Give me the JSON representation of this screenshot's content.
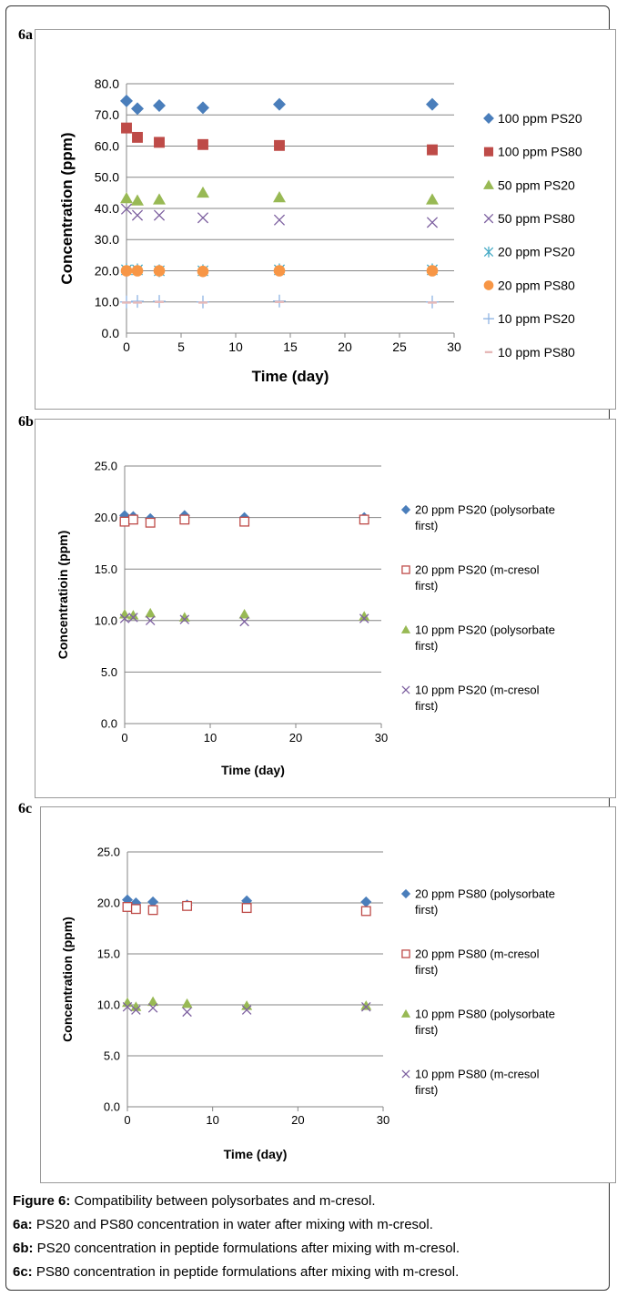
{
  "caption": {
    "title_bold": "Figure 6:",
    "title_text": " Compatibility between polysorbates and m-cresol.",
    "lines": [
      {
        "bold": "6a:",
        "text": " PS20 and PS80 concentration in water after mixing with m-cresol."
      },
      {
        "bold": "6b:",
        "text": " PS20 concentration in peptide formulations after mixing with m-cresol."
      },
      {
        "bold": "6c:",
        "text": " PS80 concentration in peptide formulations after mixing with m-cresol."
      }
    ]
  },
  "chart_data": [
    {
      "id": "6a",
      "type": "scatter",
      "panel_label": "6a",
      "xlabel": "Time (day)",
      "ylabel": "Concentration (ppm)",
      "xlim": [
        0,
        30
      ],
      "ylim": [
        0,
        80
      ],
      "xticks": [
        0,
        5,
        10,
        15,
        20,
        25,
        30
      ],
      "yticks": [
        "0.0",
        "10.0",
        "20.0",
        "30.0",
        "40.0",
        "50.0",
        "60.0",
        "70.0",
        "80.0"
      ],
      "grid": "horizontal",
      "legend_position": "right",
      "x": [
        0,
        1,
        3,
        7,
        14,
        28
      ],
      "series": [
        {
          "name": "100 ppm PS20",
          "marker": "diamond",
          "color": "#4a7ebb",
          "values": [
            74.5,
            72.0,
            73.0,
            72.3,
            73.4,
            73.4
          ]
        },
        {
          "name": "100 ppm PS80",
          "marker": "square",
          "color": "#be4b48",
          "values": [
            65.8,
            62.8,
            61.2,
            60.5,
            60.2,
            58.8
          ]
        },
        {
          "name": "50 ppm PS20",
          "marker": "triangle",
          "color": "#98b954",
          "values": [
            43.2,
            42.5,
            42.8,
            45.0,
            43.5,
            42.8
          ]
        },
        {
          "name": "50 ppm PS80",
          "marker": "x",
          "color": "#7d60a0",
          "values": [
            39.8,
            37.8,
            37.8,
            37.0,
            36.3,
            35.5
          ]
        },
        {
          "name": "20 ppm PS20",
          "marker": "star",
          "color": "#46aac5",
          "values": [
            20.3,
            20.3,
            20.0,
            20.0,
            20.3,
            20.3
          ]
        },
        {
          "name": "20 ppm PS80",
          "marker": "circle",
          "color": "#f79646",
          "values": [
            20.0,
            20.0,
            20.0,
            19.8,
            20.0,
            20.0
          ]
        },
        {
          "name": "10 ppm PS20",
          "marker": "plus",
          "color": "#8eb4e3",
          "values": [
            10.0,
            10.2,
            10.2,
            10.0,
            10.3,
            10.0
          ]
        },
        {
          "name": "10 ppm PS80",
          "marker": "dash",
          "color": "#e6b9b8",
          "values": [
            9.8,
            9.8,
            10.0,
            9.8,
            10.0,
            9.8
          ]
        }
      ]
    },
    {
      "id": "6b",
      "type": "scatter",
      "panel_label": "6b",
      "xlabel": "Time (day)",
      "ylabel": "Concentratioin (ppm)",
      "xlim": [
        0,
        30
      ],
      "ylim": [
        0,
        25
      ],
      "xticks": [
        0,
        10,
        20,
        30
      ],
      "yticks": [
        "0.0",
        "5.0",
        "10.0",
        "15.0",
        "20.0",
        "25.0"
      ],
      "grid": "horizontal",
      "legend_position": "right",
      "x": [
        0,
        1,
        3,
        7,
        14,
        28
      ],
      "series": [
        {
          "name": "20 ppm PS20 (polysorbate first)",
          "legend_lines": [
            "20 ppm PS20 (polysorbate",
            "first)"
          ],
          "marker": "diamond",
          "color": "#4a7ebb",
          "values": [
            20.2,
            20.1,
            19.9,
            20.2,
            20.0,
            20.0
          ]
        },
        {
          "name": "20 ppm PS20 (m-cresol first)",
          "legend_lines": [
            "20 ppm PS20 (m-cresol",
            "first)"
          ],
          "marker": "square-open",
          "color": "#be4b48",
          "values": [
            19.6,
            19.8,
            19.5,
            19.8,
            19.6,
            19.8
          ]
        },
        {
          "name": "10 ppm PS20 (polysorbate first)",
          "legend_lines": [
            "10 ppm PS20 (polysorbate",
            "first)"
          ],
          "marker": "triangle",
          "color": "#98b954",
          "values": [
            10.6,
            10.5,
            10.7,
            10.3,
            10.6,
            10.4
          ]
        },
        {
          "name": "10 ppm PS20 (m-cresol first)",
          "legend_lines": [
            "10 ppm PS20 (m-cresol",
            "first)"
          ],
          "marker": "x",
          "color": "#7d60a0",
          "values": [
            10.2,
            10.3,
            10.0,
            10.1,
            9.9,
            10.2
          ]
        }
      ]
    },
    {
      "id": "6c",
      "type": "scatter",
      "panel_label": "6c",
      "xlabel": "Time (day)",
      "ylabel": "Concentration (ppm)",
      "xlim": [
        0,
        30
      ],
      "ylim": [
        0,
        25
      ],
      "xticks": [
        0,
        10,
        20,
        30
      ],
      "yticks": [
        "0.0",
        "5.0",
        "10.0",
        "15.0",
        "20.0",
        "25.0"
      ],
      "grid": "horizontal",
      "legend_position": "right",
      "x": [
        0,
        1,
        3,
        7,
        14,
        28
      ],
      "series": [
        {
          "name": "20 ppm PS80 (polysorbate first)",
          "legend_lines": [
            "20 ppm PS80 (polysorbate",
            "first)"
          ],
          "marker": "diamond",
          "color": "#4a7ebb",
          "values": [
            20.3,
            20.0,
            20.1,
            19.8,
            20.2,
            20.1
          ]
        },
        {
          "name": "20 ppm PS80 (m-cresol first)",
          "legend_lines": [
            "20 ppm PS80 (m-cresol",
            "first)"
          ],
          "marker": "square-open",
          "color": "#be4b48",
          "values": [
            19.6,
            19.4,
            19.3,
            19.7,
            19.5,
            19.2
          ]
        },
        {
          "name": "10 ppm PS80 (polysorbate first)",
          "legend_lines": [
            "10 ppm PS80 (polysorbate",
            "first)"
          ],
          "marker": "triangle",
          "color": "#98b954",
          "values": [
            10.2,
            9.8,
            10.3,
            10.1,
            9.9,
            9.9
          ]
        },
        {
          "name": "10 ppm PS80 (m-cresol first)",
          "legend_lines": [
            "10 ppm PS80 (m-cresol",
            "first)"
          ],
          "marker": "x",
          "color": "#7d60a0",
          "values": [
            9.8,
            9.5,
            9.7,
            9.3,
            9.5,
            9.8
          ]
        }
      ]
    }
  ]
}
